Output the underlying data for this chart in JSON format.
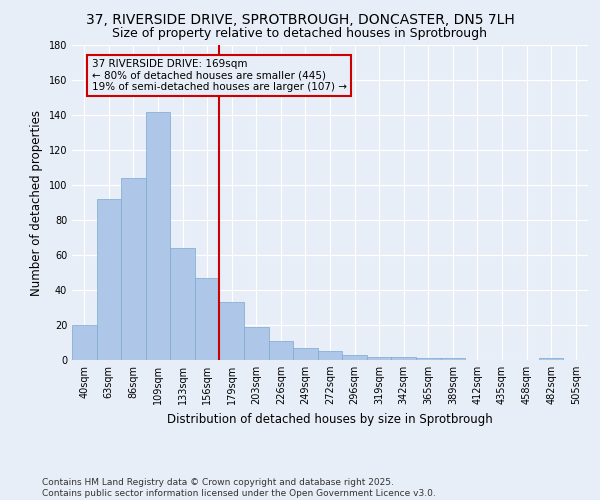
{
  "title_line1": "37, RIVERSIDE DRIVE, SPROTBROUGH, DONCASTER, DN5 7LH",
  "title_line2": "Size of property relative to detached houses in Sprotbrough",
  "xlabel": "Distribution of detached houses by size in Sprotbrough",
  "ylabel": "Number of detached properties",
  "bins": [
    "40sqm",
    "63sqm",
    "86sqm",
    "109sqm",
    "133sqm",
    "156sqm",
    "179sqm",
    "203sqm",
    "226sqm",
    "249sqm",
    "272sqm",
    "296sqm",
    "319sqm",
    "342sqm",
    "365sqm",
    "389sqm",
    "412sqm",
    "435sqm",
    "458sqm",
    "482sqm",
    "505sqm"
  ],
  "values": [
    20,
    92,
    104,
    142,
    64,
    47,
    33,
    19,
    11,
    7,
    5,
    3,
    2,
    2,
    1,
    1,
    0,
    0,
    0,
    1,
    0
  ],
  "bar_color": "#aec6e8",
  "bar_edge_color": "#7aaad0",
  "marker_after_index": 5,
  "marker_color": "#cc0000",
  "annotation_title": "37 RIVERSIDE DRIVE: 169sqm",
  "annotation_line2": "← 80% of detached houses are smaller (445)",
  "annotation_line3": "19% of semi-detached houses are larger (107) →",
  "annotation_box_color": "#cc0000",
  "ylim": [
    0,
    180
  ],
  "yticks": [
    0,
    20,
    40,
    60,
    80,
    100,
    120,
    140,
    160,
    180
  ],
  "footnote1": "Contains HM Land Registry data © Crown copyright and database right 2025.",
  "footnote2": "Contains public sector information licensed under the Open Government Licence v3.0.",
  "background_color": "#e8eef7",
  "bar_width": 1.0,
  "grid_color": "#ffffff",
  "title_fontsize": 10,
  "subtitle_fontsize": 9,
  "axis_label_fontsize": 8.5,
  "tick_fontsize": 7,
  "annotation_fontsize": 7.5,
  "footnote_fontsize": 6.5
}
